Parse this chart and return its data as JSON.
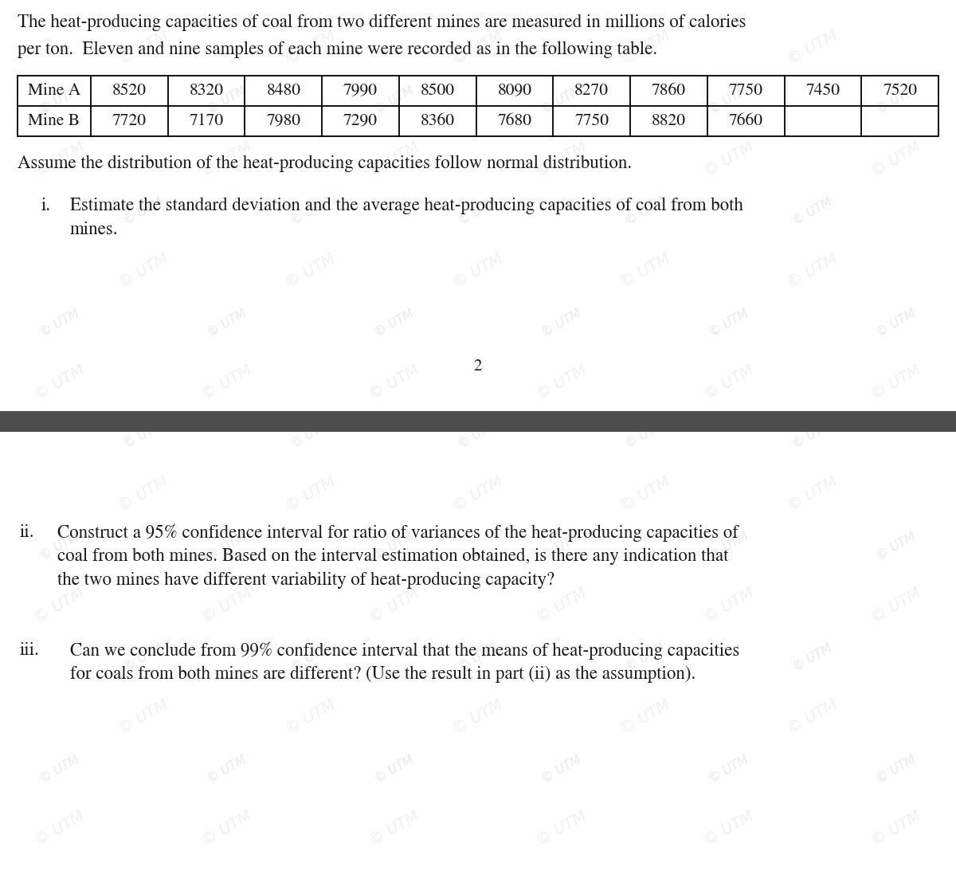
{
  "bg_color": "#ffffff",
  "watermark_text": "© UTM",
  "watermark_color_light": "#e8e8e8",
  "watermark_color_dark": "#d0d0d0",
  "intro_line1": "The heat-producing capacities of coal from two different mines are measured in millions of calories",
  "intro_line2": "per ton.  Eleven and nine samples of each mine were recorded as in the following table.",
  "assume_text": "Assume the distribution of the heat-producing capacities follow normal distribution.",
  "part_i_label": "i.",
  "part_i_line1": "Estimate the standard deviation and the average heat-producing capacities of coal from both",
  "part_i_line2": "mines.",
  "page_number": "2",
  "divider_color": "#4d4d4d",
  "part_ii_label": "ii.",
  "part_ii_line1": "Construct a 95% confidence interval for ratio of variances of the heat-producing capacities of",
  "part_ii_line2": "coal from both mines. Based on the interval estimation obtained, is there any indication that",
  "part_ii_line3": "the two mines have different variability of heat-producing capacity?",
  "part_iii_label": "iii.",
  "part_iii_line1": "Can we conclude from 99% confidence interval that the means of heat-producing capacities",
  "part_iii_line2": "for coals from both mines are different? (Use the result in part (ii) as the assumption).",
  "table_row_labels": [
    "Mine A",
    "Mine B"
  ],
  "mine_a_data": [
    "8520",
    "8320",
    "8480",
    "7990",
    "8500",
    "8090",
    "8270",
    "7860",
    "7750",
    "7450",
    "7520"
  ],
  "mine_b_data": [
    "7720",
    "7170",
    "7980",
    "7290",
    "8360",
    "7680",
    "7750",
    "8820",
    "7660",
    "",
    ""
  ],
  "font_size_body": 16.5,
  "font_size_table": 15.5,
  "font_size_page": 15,
  "text_color": "#1a1a1a",
  "table_border_color": "#000000"
}
